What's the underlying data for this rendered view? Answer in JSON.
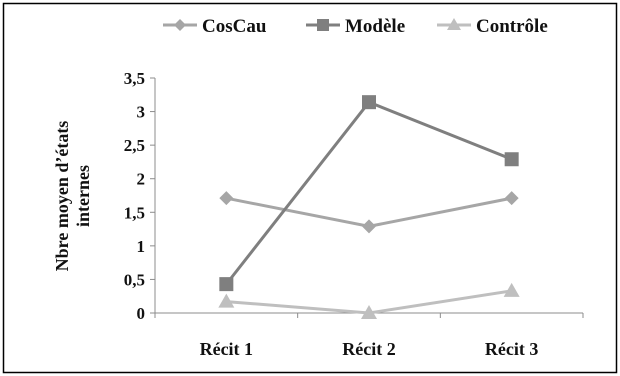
{
  "chart_data": {
    "type": "line",
    "categories": [
      "Récit 1",
      "Récit 2",
      "Récit 3"
    ],
    "ylabel_lines": [
      "Nbre moyen d’états",
      "internes"
    ],
    "y_ticks": [
      "0",
      "0,5",
      "1",
      "1,5",
      "2",
      "2,5",
      "3",
      "3,5"
    ],
    "ylim": [
      0,
      3.5
    ],
    "grid": false,
    "legend_position": "top",
    "series": [
      {
        "name": "CosCau",
        "marker": "diamond",
        "color": "#a6a6a6",
        "values": [
          1.71,
          1.29,
          1.71
        ]
      },
      {
        "name": "Modèle",
        "marker": "square",
        "color": "#7f7f7f",
        "values": [
          0.43,
          3.14,
          2.29
        ]
      },
      {
        "name": "Contrôle",
        "marker": "triangle",
        "color": "#bfbfbf",
        "values": [
          0.17,
          0.0,
          0.33
        ]
      }
    ]
  }
}
